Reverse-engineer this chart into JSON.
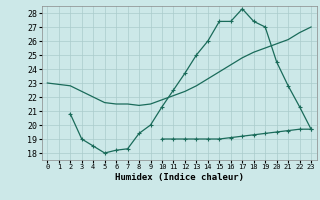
{
  "xlabel": "Humidex (Indice chaleur)",
  "bg_color": "#cce8e8",
  "grid_color": "#aacccc",
  "line_color": "#1a6b5a",
  "xlim": [
    -0.5,
    23.5
  ],
  "ylim": [
    17.5,
    28.5
  ],
  "yticks": [
    18,
    19,
    20,
    21,
    22,
    23,
    24,
    25,
    26,
    27,
    28
  ],
  "xticks": [
    0,
    1,
    2,
    3,
    4,
    5,
    6,
    7,
    8,
    9,
    10,
    11,
    12,
    13,
    14,
    15,
    16,
    17,
    18,
    19,
    20,
    21,
    22,
    23
  ],
  "line1_x": [
    0,
    1,
    2,
    3,
    4,
    5,
    6,
    7,
    8,
    9,
    10,
    11,
    12,
    13,
    14,
    15,
    16,
    17,
    18,
    19,
    20,
    21,
    22,
    23
  ],
  "line1_y": [
    23.0,
    22.9,
    22.8,
    22.4,
    22.0,
    21.6,
    21.5,
    21.5,
    21.4,
    21.5,
    21.8,
    22.1,
    22.4,
    22.8,
    23.3,
    23.8,
    24.3,
    24.8,
    25.2,
    25.5,
    25.8,
    26.1,
    26.6,
    27.0
  ],
  "line2_x": [
    2,
    3,
    4,
    5,
    6,
    7,
    8,
    9,
    10,
    11,
    12,
    13,
    14,
    15,
    16,
    17,
    18,
    19,
    20,
    21,
    22,
    23
  ],
  "line2_y": [
    20.8,
    19.0,
    18.5,
    18.0,
    18.2,
    18.3,
    19.4,
    20.0,
    21.3,
    22.5,
    23.7,
    25.0,
    26.0,
    27.4,
    27.4,
    28.3,
    27.4,
    27.0,
    24.5,
    22.8,
    21.3,
    19.7
  ],
  "line3_x": [
    10,
    11,
    12,
    13,
    14,
    15,
    16,
    17,
    18,
    19,
    20,
    21,
    22,
    23
  ],
  "line3_y": [
    19.0,
    19.0,
    19.0,
    19.0,
    19.0,
    19.0,
    19.1,
    19.2,
    19.3,
    19.4,
    19.5,
    19.6,
    19.7,
    19.7
  ]
}
